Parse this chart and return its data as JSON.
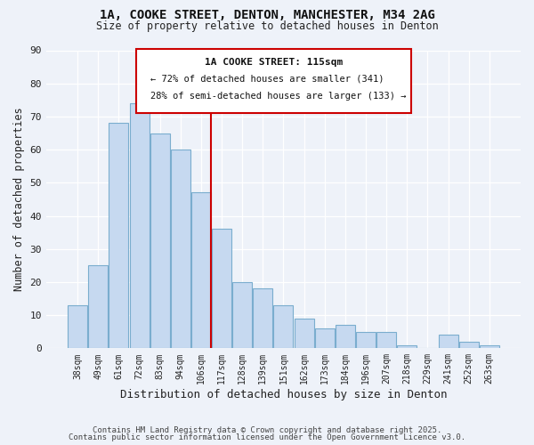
{
  "title_line1": "1A, COOKE STREET, DENTON, MANCHESTER, M34 2AG",
  "title_line2": "Size of property relative to detached houses in Denton",
  "xlabel": "Distribution of detached houses by size in Denton",
  "ylabel": "Number of detached properties",
  "bar_labels": [
    "38sqm",
    "49sqm",
    "61sqm",
    "72sqm",
    "83sqm",
    "94sqm",
    "106sqm",
    "117sqm",
    "128sqm",
    "139sqm",
    "151sqm",
    "162sqm",
    "173sqm",
    "184sqm",
    "196sqm",
    "207sqm",
    "218sqm",
    "229sqm",
    "241sqm",
    "252sqm",
    "263sqm"
  ],
  "bar_heights": [
    13,
    25,
    68,
    74,
    65,
    60,
    47,
    36,
    20,
    18,
    13,
    9,
    6,
    7,
    5,
    5,
    1,
    0,
    4,
    2,
    1
  ],
  "bar_color": "#c6d9f0",
  "bar_edge_color": "#7aadce",
  "vline_color": "#cc0000",
  "ylim": [
    0,
    90
  ],
  "yticks": [
    0,
    10,
    20,
    30,
    40,
    50,
    60,
    70,
    80,
    90
  ],
  "annotation_title": "1A COOKE STREET: 115sqm",
  "annotation_line2": "← 72% of detached houses are smaller (341)",
  "annotation_line3": "28% of semi-detached houses are larger (133) →",
  "background_color": "#eef2f9",
  "grid_color": "#d0d8e8",
  "footer_line1": "Contains HM Land Registry data © Crown copyright and database right 2025.",
  "footer_line2": "Contains public sector information licensed under the Open Government Licence v3.0."
}
